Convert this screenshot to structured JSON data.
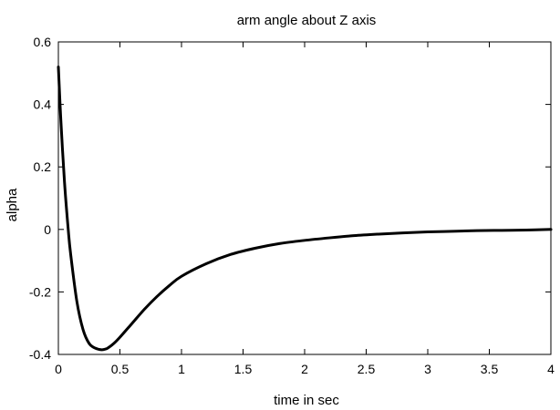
{
  "chart_data": {
    "type": "line",
    "title": "arm angle about Z axis",
    "xlabel": "time in sec",
    "ylabel": "alpha",
    "xlim": [
      0,
      4
    ],
    "ylim": [
      -0.4,
      0.6
    ],
    "xticks": [
      0,
      0.5,
      1,
      1.5,
      2,
      2.5,
      3,
      3.5,
      4
    ],
    "xtick_labels": [
      "0",
      "0.5",
      "1",
      "1.5",
      "2",
      "2.5",
      "3",
      "3.5",
      "4"
    ],
    "yticks": [
      -0.4,
      -0.2,
      0,
      0.2,
      0.4,
      0.6
    ],
    "ytick_labels": [
      "-0.4",
      "-0.2",
      "0",
      "0.2",
      "0.4",
      "0.6"
    ],
    "grid": false,
    "line_color": "#000000",
    "series": [
      {
        "x": [
          0,
          0.02,
          0.05,
          0.08,
          0.1,
          0.15,
          0.2,
          0.25,
          0.3,
          0.35,
          0.38,
          0.4,
          0.45,
          0.5,
          0.6,
          0.7,
          0.8,
          0.9,
          1.0,
          1.2,
          1.4,
          1.6,
          1.8,
          2.0,
          2.2,
          2.4,
          2.6,
          2.8,
          3.0,
          3.2,
          3.4,
          3.6,
          3.8,
          4.0
        ],
        "y": [
          0.52,
          0.35,
          0.15,
          0.0,
          -0.08,
          -0.23,
          -0.32,
          -0.365,
          -0.38,
          -0.385,
          -0.383,
          -0.38,
          -0.365,
          -0.345,
          -0.3,
          -0.255,
          -0.215,
          -0.18,
          -0.15,
          -0.11,
          -0.08,
          -0.06,
          -0.045,
          -0.035,
          -0.027,
          -0.02,
          -0.015,
          -0.011,
          -0.008,
          -0.006,
          -0.004,
          -0.003,
          -0.002,
          0.0
        ]
      }
    ]
  }
}
